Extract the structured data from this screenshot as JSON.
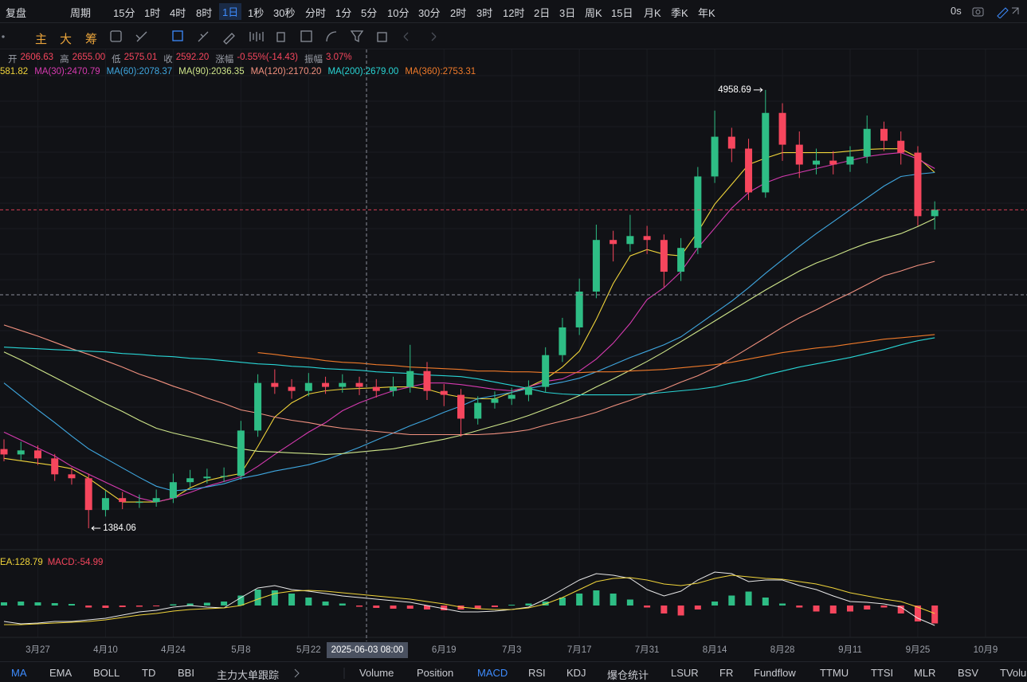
{
  "toolbar": {
    "items": [
      "复盘",
      "周期",
      "15分",
      "1时",
      "4时",
      "8时",
      "1日",
      "1秒",
      "30秒",
      "分时",
      "1分",
      "5分",
      "10分",
      "30分",
      "2时",
      "3时",
      "12时",
      "2日",
      "3日",
      "周K",
      "15日",
      "月K",
      "季K",
      "年K"
    ],
    "active_index": 6,
    "right": "0s"
  },
  "drawing_toolbar": {
    "items": [
      "主",
      "大",
      "筹"
    ],
    "color": "#e8a33b"
  },
  "ohlc_info": {
    "items": [
      "开",
      "2606.63",
      "高",
      "2655.00",
      "低",
      "2575.01",
      "收",
      "2592.20",
      "涨幅",
      "-0.55%(-14.43)",
      "振幅",
      "3.07%"
    ],
    "value_color": "#f6465d"
  },
  "chart_data": [
    {
      "type": "candlestick",
      "categories": [
        null,
        null,
        "3月27",
        null,
        null,
        null,
        "4月10",
        null,
        null,
        null,
        "4月24",
        null,
        null,
        null,
        "5月8",
        null,
        null,
        null,
        "5月22",
        null,
        null,
        null,
        null,
        null,
        null,
        null,
        "6月19",
        null,
        null,
        null,
        "7月3",
        null,
        null,
        null,
        "7月17",
        null,
        null,
        null,
        "7月31",
        null,
        null,
        null,
        "8月14",
        null,
        null,
        null,
        "8月28",
        null,
        null,
        null,
        "9月11",
        null,
        null,
        null,
        "9月25",
        null,
        null,
        null,
        "10月9"
      ],
      "open": [
        2030,
        1986,
        2019,
        1954,
        1824,
        1792,
        1533,
        1630,
        1598,
        1598,
        1630,
        1760,
        1792,
        1805,
        1811,
        2181,
        2569,
        2537,
        2504,
        2569,
        2537,
        2569,
        2537,
        2504,
        2537,
        2666,
        2504,
        2472,
        2278,
        2407,
        2440,
        2472,
        2537,
        2796,
        3022,
        3314,
        3735,
        3702,
        3767,
        3735,
        3476,
        3670,
        4253,
        4577,
        4480,
        4123,
        4771,
        4512,
        4350,
        4382,
        4350,
        4415,
        4641,
        4544,
        4447,
        3929,
        null,
        null,
        null
      ],
      "high": [
        2110,
        2090,
        2060,
        1990,
        1880,
        1830,
        1690,
        1680,
        1660,
        1700,
        1830,
        1860,
        1870,
        1880,
        2260,
        2640,
        2680,
        2600,
        2650,
        2620,
        2640,
        2620,
        2600,
        2620,
        2880,
        2740,
        2560,
        2520,
        2460,
        2500,
        2530,
        2590,
        2860,
        3100,
        3420,
        3860,
        3810,
        3940,
        3850,
        3780,
        3750,
        4330,
        4790,
        4650,
        4560,
        4958.69,
        4850,
        4620,
        4480,
        4460,
        4500,
        4750,
        4700,
        4620,
        4500,
        4050,
        null,
        null,
        null
      ],
      "low": [
        1930,
        1940,
        1900,
        1770,
        1740,
        1384.06,
        1480,
        1540,
        1550,
        1560,
        1590,
        1720,
        1750,
        1760,
        1780,
        2130,
        2480,
        2440,
        2460,
        2480,
        2490,
        2470,
        2450,
        2460,
        2490,
        2430,
        2380,
        2130,
        2230,
        2360,
        2390,
        2420,
        2490,
        2740,
        2960,
        3260,
        3560,
        3640,
        3620,
        3350,
        3400,
        3620,
        4200,
        4370,
        4060,
        4080,
        4380,
        4240,
        4270,
        4270,
        4290,
        4360,
        4460,
        4350,
        3850,
        3820,
        null,
        null,
        null
      ],
      "close": [
        1986,
        2019,
        1954,
        1824,
        1792,
        1533,
        1630,
        1598,
        1598,
        1630,
        1760,
        1792,
        1805,
        1811,
        2181,
        2569,
        2537,
        2504,
        2569,
        2537,
        2569,
        2537,
        2504,
        2537,
        2666,
        2504,
        2472,
        2278,
        2407,
        2440,
        2472,
        2537,
        2796,
        3022,
        3314,
        3735,
        3702,
        3767,
        3735,
        3476,
        3670,
        4253,
        4577,
        4480,
        4123,
        4771,
        4512,
        4350,
        4382,
        4350,
        4415,
        4641,
        4544,
        4447,
        3929,
        3981,
        null,
        null,
        null
      ],
      "up_color": "#2ebd85",
      "down_color": "#f6465d",
      "ylim": [
        1209,
        5289
      ],
      "series": [
        {
          "name": "581.82",
          "color": "#f0d43a",
          "values": [
            1954,
            1935,
            1915,
            1896,
            1870,
            1792,
            1695,
            1598,
            1598,
            1598,
            1630,
            1714,
            1773,
            1805,
            1831,
            2051,
            2291,
            2407,
            2479,
            2505,
            2518,
            2524,
            2530,
            2537,
            2537,
            2518,
            2479,
            2453,
            2440,
            2440,
            2492,
            2537,
            2602,
            2699,
            2828,
            3088,
            3379,
            3605,
            3657,
            3618,
            3605,
            3800,
            4027,
            4188,
            4350,
            4402,
            4447,
            4447,
            4447,
            4447,
            4460,
            4473,
            4479,
            4479,
            4408,
            4285,
            null,
            null,
            null
          ]
        },
        {
          "name": "MA(30):2470.79",
          "color": "#d63ab0",
          "values": [
            2168,
            2103,
            2038,
            1973,
            1889,
            1825,
            1760,
            1695,
            1630,
            1598,
            1630,
            1676,
            1727,
            1766,
            1805,
            1889,
            1986,
            2077,
            2168,
            2246,
            2343,
            2407,
            2459,
            2505,
            2537,
            2569,
            2569,
            2556,
            2537,
            2517,
            2505,
            2537,
            2582,
            2602,
            2666,
            2764,
            2893,
            3055,
            3249,
            3346,
            3476,
            3670,
            3832,
            3994,
            4123,
            4201,
            4253,
            4285,
            4318,
            4350,
            4383,
            4415,
            4434,
            4447,
            4395,
            4318,
            null,
            null,
            null
          ]
        },
        {
          "name": "MA(60):2078.37",
          "color": "#3fa7e0",
          "values": [
            2569,
            2459,
            2349,
            2246,
            2136,
            2032,
            1954,
            1876,
            1799,
            1727,
            1689,
            1701,
            1721,
            1747,
            1792,
            1818,
            1851,
            1876,
            1902,
            1941,
            1992,
            2044,
            2103,
            2161,
            2220,
            2272,
            2330,
            2381,
            2440,
            2466,
            2492,
            2524,
            2550,
            2576,
            2608,
            2660,
            2718,
            2777,
            2828,
            2880,
            2945,
            3042,
            3139,
            3236,
            3346,
            3463,
            3573,
            3683,
            3787,
            3884,
            3981,
            4078,
            4175,
            4253,
            4272,
            4285,
            null,
            null,
            null
          ]
        },
        {
          "name": "MA(90):2036.35",
          "color": "#cfe68a",
          "values": [
            2822,
            2757,
            2686,
            2615,
            2543,
            2472,
            2401,
            2336,
            2265,
            2200,
            2161,
            2129,
            2097,
            2064,
            2032,
            2012,
            2006,
            1999,
            1993,
            1986,
            1993,
            2006,
            2019,
            2032,
            2058,
            2084,
            2110,
            2142,
            2181,
            2220,
            2259,
            2304,
            2356,
            2407,
            2466,
            2537,
            2602,
            2673,
            2744,
            2822,
            2906,
            2990,
            3074,
            3159,
            3243,
            3327,
            3405,
            3482,
            3547,
            3599,
            3657,
            3709,
            3748,
            3787,
            3845,
            3910,
            null,
            null,
            null
          ]
        },
        {
          "name": "MA(120):2170.20",
          "color": "#f2917f",
          "values": [
            3042,
            2997,
            2951,
            2900,
            2848,
            2802,
            2751,
            2699,
            2641,
            2595,
            2543,
            2498,
            2446,
            2401,
            2349,
            2323,
            2291,
            2265,
            2246,
            2220,
            2200,
            2187,
            2174,
            2161,
            2148,
            2148,
            2148,
            2148,
            2148,
            2155,
            2168,
            2187,
            2226,
            2259,
            2291,
            2330,
            2381,
            2427,
            2479,
            2518,
            2576,
            2628,
            2692,
            2770,
            2854,
            2938,
            3023,
            3100,
            3165,
            3236,
            3301,
            3372,
            3443,
            3482,
            3528,
            3560,
            null,
            null,
            null
          ]
        },
        {
          "name": "MA(200):2679.00",
          "color": "#29d5d5",
          "values": [
            2861,
            2854,
            2848,
            2841,
            2835,
            2828,
            2822,
            2809,
            2802,
            2790,
            2783,
            2770,
            2764,
            2751,
            2738,
            2725,
            2718,
            2705,
            2699,
            2686,
            2679,
            2673,
            2660,
            2653,
            2647,
            2634,
            2628,
            2621,
            2602,
            2576,
            2550,
            2524,
            2492,
            2479,
            2472,
            2472,
            2472,
            2472,
            2479,
            2492,
            2505,
            2518,
            2537,
            2569,
            2595,
            2634,
            2666,
            2699,
            2725,
            2751,
            2777,
            2809,
            2841,
            2880,
            2913,
            2938,
            null,
            null,
            null
          ]
        },
        {
          "name": "MA(360):2753.31",
          "color": "#ef7a2a",
          "values": [
            null,
            null,
            null,
            null,
            null,
            null,
            null,
            null,
            null,
            null,
            null,
            null,
            null,
            null,
            null,
            2816,
            2802,
            2783,
            2770,
            2751,
            2738,
            2731,
            2718,
            2712,
            2699,
            2692,
            2686,
            2679,
            2666,
            2666,
            2660,
            2660,
            2653,
            2653,
            2653,
            2660,
            2660,
            2666,
            2673,
            2679,
            2692,
            2705,
            2718,
            2738,
            2764,
            2790,
            2816,
            2835,
            2854,
            2867,
            2887,
            2906,
            2926,
            2938,
            2951,
            2964,
            null,
            null,
            null
          ]
        }
      ]
    },
    {
      "type": "macd",
      "labels": [
        "EA:128.79",
        "MACD:-54.99"
      ],
      "label_colors": [
        "#f0d43a",
        "#f6465d"
      ],
      "ylim": [
        -80,
        120
      ],
      "up_color": "#2ebd85",
      "down_color": "#f6465d",
      "histogram": [
        8,
        10,
        8,
        6,
        4,
        -5,
        -6,
        -4,
        -3,
        -2,
        3,
        5,
        7,
        10,
        25,
        40,
        38,
        30,
        20,
        10,
        5,
        -3,
        -6,
        -8,
        -8,
        -10,
        -12,
        -10,
        -8,
        -4,
        2,
        5,
        10,
        20,
        30,
        38,
        30,
        15,
        -5,
        -20,
        -25,
        -10,
        10,
        25,
        35,
        20,
        5,
        -5,
        -15,
        -20,
        -15,
        -10,
        -5,
        -20,
        -40,
        -45,
        null,
        null,
        null
      ],
      "dif": [
        -40,
        -46,
        -44,
        -40,
        -40,
        -36,
        -32,
        -24,
        -16,
        -12,
        -4,
        0,
        -4,
        -6,
        20,
        44,
        50,
        40,
        36,
        30,
        24,
        20,
        16,
        12,
        8,
        0,
        -8,
        -16,
        -16,
        -14,
        -10,
        -4,
        16,
        40,
        64,
        80,
        76,
        68,
        40,
        24,
        36,
        64,
        84,
        80,
        60,
        64,
        64,
        50,
        40,
        24,
        10,
        8,
        4,
        -4,
        -32,
        -50,
        null,
        null,
        null
      ],
      "dea": [
        -48,
        -48,
        -46,
        -44,
        -42,
        -40,
        -36,
        -30,
        -24,
        -20,
        -14,
        -10,
        -8,
        -6,
        0,
        16,
        30,
        36,
        38,
        36,
        32,
        28,
        24,
        20,
        16,
        10,
        4,
        -4,
        -8,
        -10,
        -10,
        -6,
        4,
        20,
        40,
        60,
        68,
        70,
        64,
        54,
        50,
        56,
        68,
        76,
        72,
        68,
        66,
        60,
        54,
        44,
        32,
        24,
        16,
        10,
        -4,
        -20,
        null,
        null,
        null
      ],
      "dif_color": "#e8e8e8",
      "dea_color": "#f0d43a"
    }
  ],
  "crosshair_label": "2025-06-03 08:00",
  "bottom_tabs": {
    "items": [
      "MA",
      "EMA",
      "BOLL",
      "TD",
      "BBI",
      "主力大单跟踪",
      "Volume",
      "Position",
      "MACD",
      "RSI",
      "KDJ",
      "爆仓统计",
      "LSUR",
      "FR",
      "Fundflow",
      "TTMU",
      "TTSI",
      "MLR",
      "BSV",
      "TVolu"
    ],
    "active_indices": [
      0,
      8
    ]
  }
}
